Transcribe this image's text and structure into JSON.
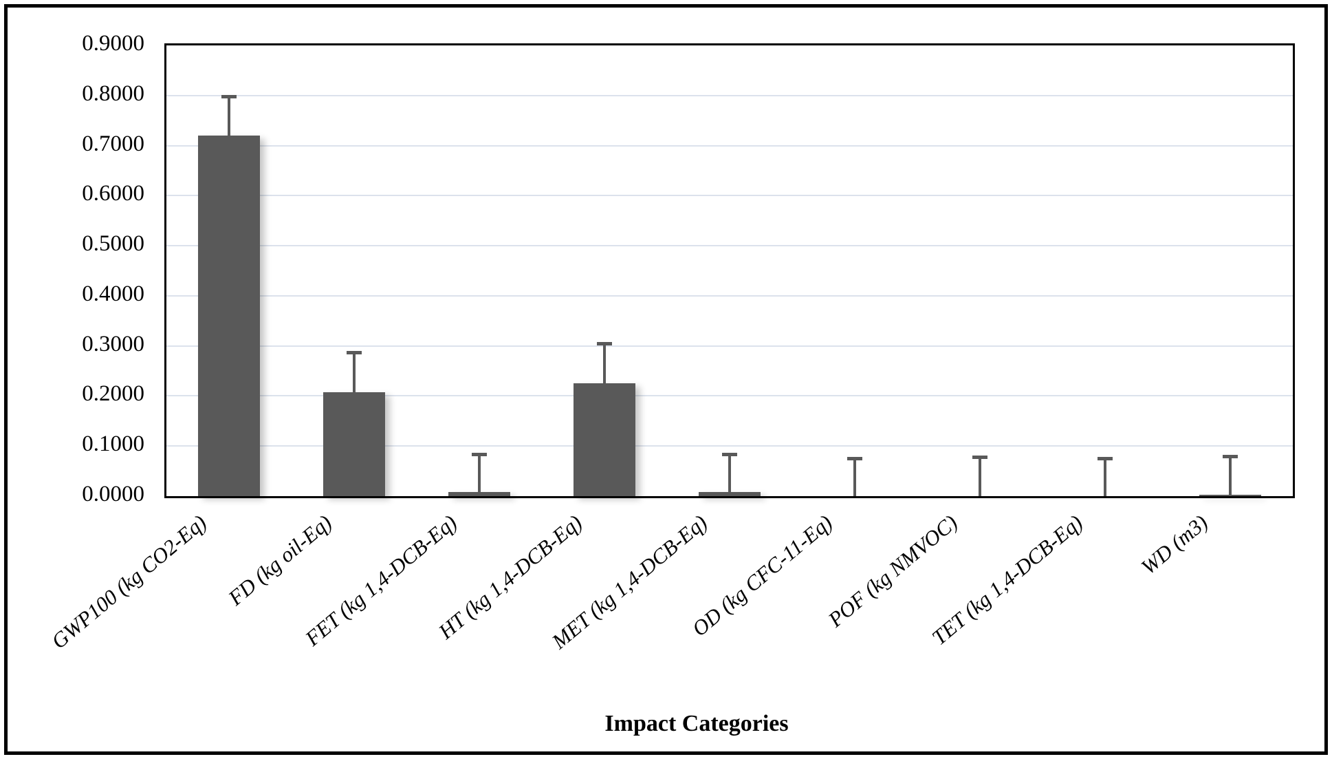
{
  "chart_data": {
    "type": "bar",
    "title": "",
    "xlabel": "Impact Categories",
    "ylabel": "",
    "categories": [
      "GWP100 (kg CO2-Eq)",
      "FD (kg oil-Eq)",
      "FET (kg 1,4-DCB-Eq)",
      "HT (kg 1,4-DCB-Eq)",
      "MET (kg 1,4-DCB-Eq)",
      "OD (kg CFC-11-Eq)",
      "POF (kg NMVOC)",
      "TET (kg 1,4-DCB-Eq)",
      "WD (m3)"
    ],
    "values": [
      0.72,
      0.207,
      0.008,
      0.225,
      0.008,
      0.0,
      0.0,
      0.0,
      0.003
    ],
    "upper_error_top": [
      0.801,
      0.29,
      0.086,
      0.308,
      0.086,
      0.078,
      0.081,
      0.078,
      0.082
    ],
    "ylim": [
      0,
      0.9
    ],
    "ytick_step": 0.1,
    "yticks": [
      "0.0000",
      "0.1000",
      "0.2000",
      "0.3000",
      "0.4000",
      "0.5000",
      "0.6000",
      "0.7000",
      "0.8000",
      "0.9000"
    ],
    "grid": true,
    "legend": "none",
    "x_tick_rotation_deg": -40,
    "bar_color": "#595959",
    "error_bar_color": "#595959",
    "gridline_color": "#dce2ec",
    "axis_color": "#000000",
    "background_color": "#ffffff"
  }
}
